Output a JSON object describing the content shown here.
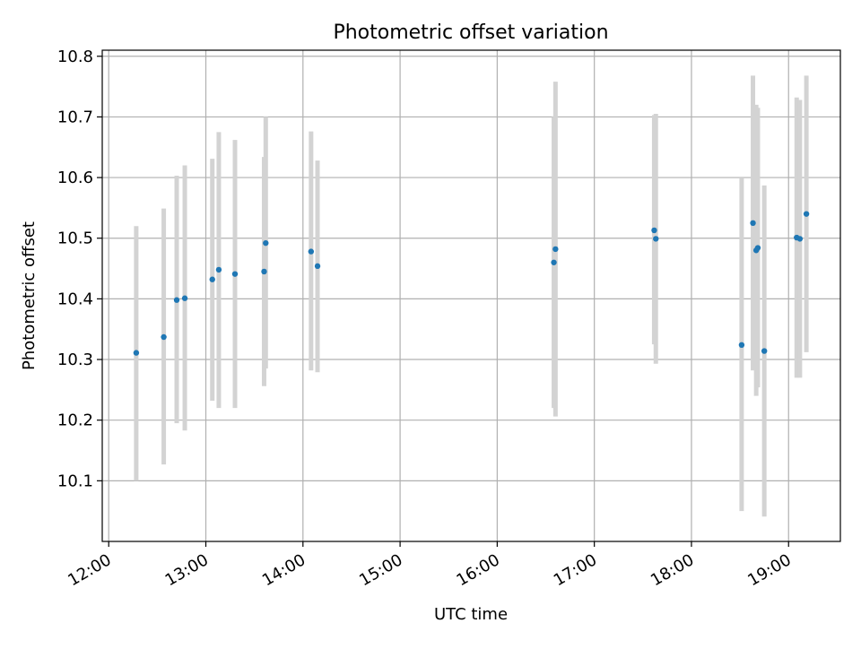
{
  "chart_data": {
    "type": "scatter",
    "title": "Photometric offset variation",
    "xlabel": "UTC time",
    "ylabel": "Photometric offset",
    "xlim": [
      "11:56",
      "19:32"
    ],
    "ylim": [
      10.0,
      10.81
    ],
    "grid": true,
    "legend": "none",
    "point_color": "#1f77b4",
    "errorbar_color": "#d3d3d3",
    "x_ticks": [
      "12:00",
      "13:00",
      "14:00",
      "15:00",
      "16:00",
      "17:00",
      "18:00",
      "19:00"
    ],
    "y_ticks": [
      10.1,
      10.2,
      10.3,
      10.4,
      10.5,
      10.6,
      10.7,
      10.8
    ],
    "points": [
      {
        "x": "12:17",
        "y": 10.311,
        "ylow": 10.1,
        "yhigh": 10.52
      },
      {
        "x": "12:34",
        "y": 10.337,
        "ylow": 10.127,
        "yhigh": 10.549
      },
      {
        "x": "12:42",
        "y": 10.398,
        "ylow": 10.195,
        "yhigh": 10.603
      },
      {
        "x": "12:47",
        "y": 10.401,
        "ylow": 10.183,
        "yhigh": 10.62
      },
      {
        "x": "13:04",
        "y": 10.432,
        "ylow": 10.232,
        "yhigh": 10.631
      },
      {
        "x": "13:08",
        "y": 10.448,
        "ylow": 10.22,
        "yhigh": 10.675
      },
      {
        "x": "13:18",
        "y": 10.441,
        "ylow": 10.22,
        "yhigh": 10.662
      },
      {
        "x": "13:36",
        "y": 10.445,
        "ylow": 10.256,
        "yhigh": 10.634
      },
      {
        "x": "13:37",
        "y": 10.492,
        "ylow": 10.285,
        "yhigh": 10.7
      },
      {
        "x": "14:05",
        "y": 10.478,
        "ylow": 10.282,
        "yhigh": 10.676
      },
      {
        "x": "14:09",
        "y": 10.454,
        "ylow": 10.279,
        "yhigh": 10.628
      },
      {
        "x": "16:35",
        "y": 10.46,
        "ylow": 10.22,
        "yhigh": 10.7
      },
      {
        "x": "16:36",
        "y": 10.482,
        "ylow": 10.206,
        "yhigh": 10.758
      },
      {
        "x": "17:37",
        "y": 10.513,
        "ylow": 10.325,
        "yhigh": 10.703
      },
      {
        "x": "17:38",
        "y": 10.499,
        "ylow": 10.293,
        "yhigh": 10.705
      },
      {
        "x": "18:31",
        "y": 10.324,
        "ylow": 10.05,
        "yhigh": 10.6
      },
      {
        "x": "18:38",
        "y": 10.525,
        "ylow": 10.282,
        "yhigh": 10.768
      },
      {
        "x": "18:40",
        "y": 10.48,
        "ylow": 10.24,
        "yhigh": 10.72
      },
      {
        "x": "18:41",
        "y": 10.484,
        "ylow": 10.254,
        "yhigh": 10.715
      },
      {
        "x": "18:45",
        "y": 10.314,
        "ylow": 10.041,
        "yhigh": 10.587
      },
      {
        "x": "19:05",
        "y": 10.501,
        "ylow": 10.27,
        "yhigh": 10.732
      },
      {
        "x": "19:07",
        "y": 10.499,
        "ylow": 10.27,
        "yhigh": 10.728
      },
      {
        "x": "19:11",
        "y": 10.54,
        "ylow": 10.312,
        "yhigh": 10.768
      }
    ]
  }
}
